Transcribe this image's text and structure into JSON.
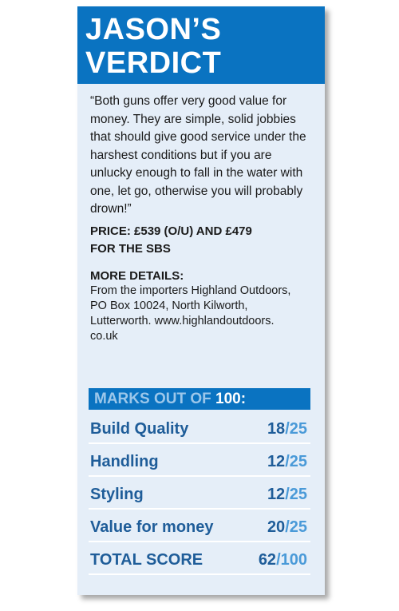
{
  "header": {
    "title_line1": "JASON’S",
    "title_line2": "VERDICT"
  },
  "quote": "“Both guns offer very good value for money. They are simple, solid jobbies that should give good service under the harshest conditions but if you are unlucky enough to fall in the water with one, let go, otherwise you will probably drown!”",
  "price_line1": "PRICE: £539 (O/U) AND £479",
  "price_line2": "FOR THE SBS",
  "more_details": {
    "heading": "MORE DETAILS:",
    "line1": "From the importers Highland Outdoors,",
    "line2": "PO Box 10024, North Kilworth,",
    "line3": "Lutterworth. www.highlandoutdoors.",
    "line4": "co.uk"
  },
  "marks": {
    "title_prefix": "MARKS OUT OF ",
    "title_number": "100:",
    "rows": [
      {
        "label": "Build Quality",
        "score": "18",
        "slash": "/",
        "max": "25"
      },
      {
        "label": "Handling",
        "score": "12",
        "slash": "/",
        "max": "25"
      },
      {
        "label": "Styling",
        "score": "12",
        "slash": "/",
        "max": "25"
      },
      {
        "label": "Value for money",
        "score": "20",
        "slash": "/",
        "max": "25"
      },
      {
        "label": "TOTAL SCORE",
        "score": "62",
        "slash": "/",
        "max": "100"
      }
    ]
  },
  "colors": {
    "header_bg": "#0a73c1",
    "card_bg": "#e5eef8",
    "score_text": "#1f5d99",
    "score_max": "#4a9ad8"
  }
}
